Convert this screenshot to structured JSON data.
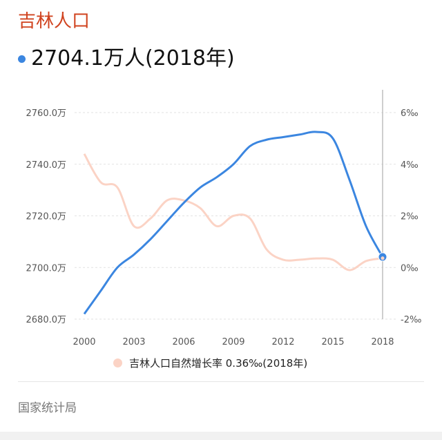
{
  "header": {
    "title": "吉林人口",
    "headline": "2704.1万人(2018年)",
    "accent_color": "#d0431f",
    "dot_color": "#3b86e0"
  },
  "legend": {
    "label": "吉林人口自然增长率 0.36‰(2018年)",
    "swatch_color": "#fbd3c5"
  },
  "source": "国家统计局",
  "chart_data": {
    "type": "line",
    "x": [
      2000,
      2001,
      2002,
      2003,
      2004,
      2005,
      2006,
      2007,
      2008,
      2009,
      2010,
      2011,
      2012,
      2013,
      2014,
      2015,
      2016,
      2017,
      2018
    ],
    "xticks": [
      "2000",
      "2003",
      "2006",
      "2009",
      "2012",
      "2015",
      "2018"
    ],
    "series": [
      {
        "axis": "left",
        "color": "#3b86e0",
        "values": [
          2682,
          2691,
          2700,
          2705,
          2711,
          2718,
          2725,
          2731,
          2735,
          2740,
          2747,
          2749.5,
          2750.5,
          2751.5,
          2752.5,
          2750,
          2734,
          2716,
          2704.1
        ]
      },
      {
        "axis": "right",
        "color": "#fbd3c5",
        "values": [
          4.4,
          3.3,
          3.1,
          1.6,
          1.9,
          2.6,
          2.6,
          2.3,
          1.6,
          2.0,
          1.9,
          0.7,
          0.3,
          0.3,
          0.35,
          0.3,
          -0.1,
          0.25,
          0.36
        ]
      }
    ],
    "left_axis": {
      "ticks": [
        "2760.0万",
        "2740.0万",
        "2720.0万",
        "2700.0万",
        "2680.0万"
      ],
      "range": [
        2680,
        2760
      ]
    },
    "right_axis": {
      "ticks": [
        "6‰",
        "4‰",
        "2‰",
        "0‰",
        "-2‰"
      ],
      "range": [
        -2,
        6
      ]
    },
    "grid": true,
    "highlight_year": 2018
  }
}
